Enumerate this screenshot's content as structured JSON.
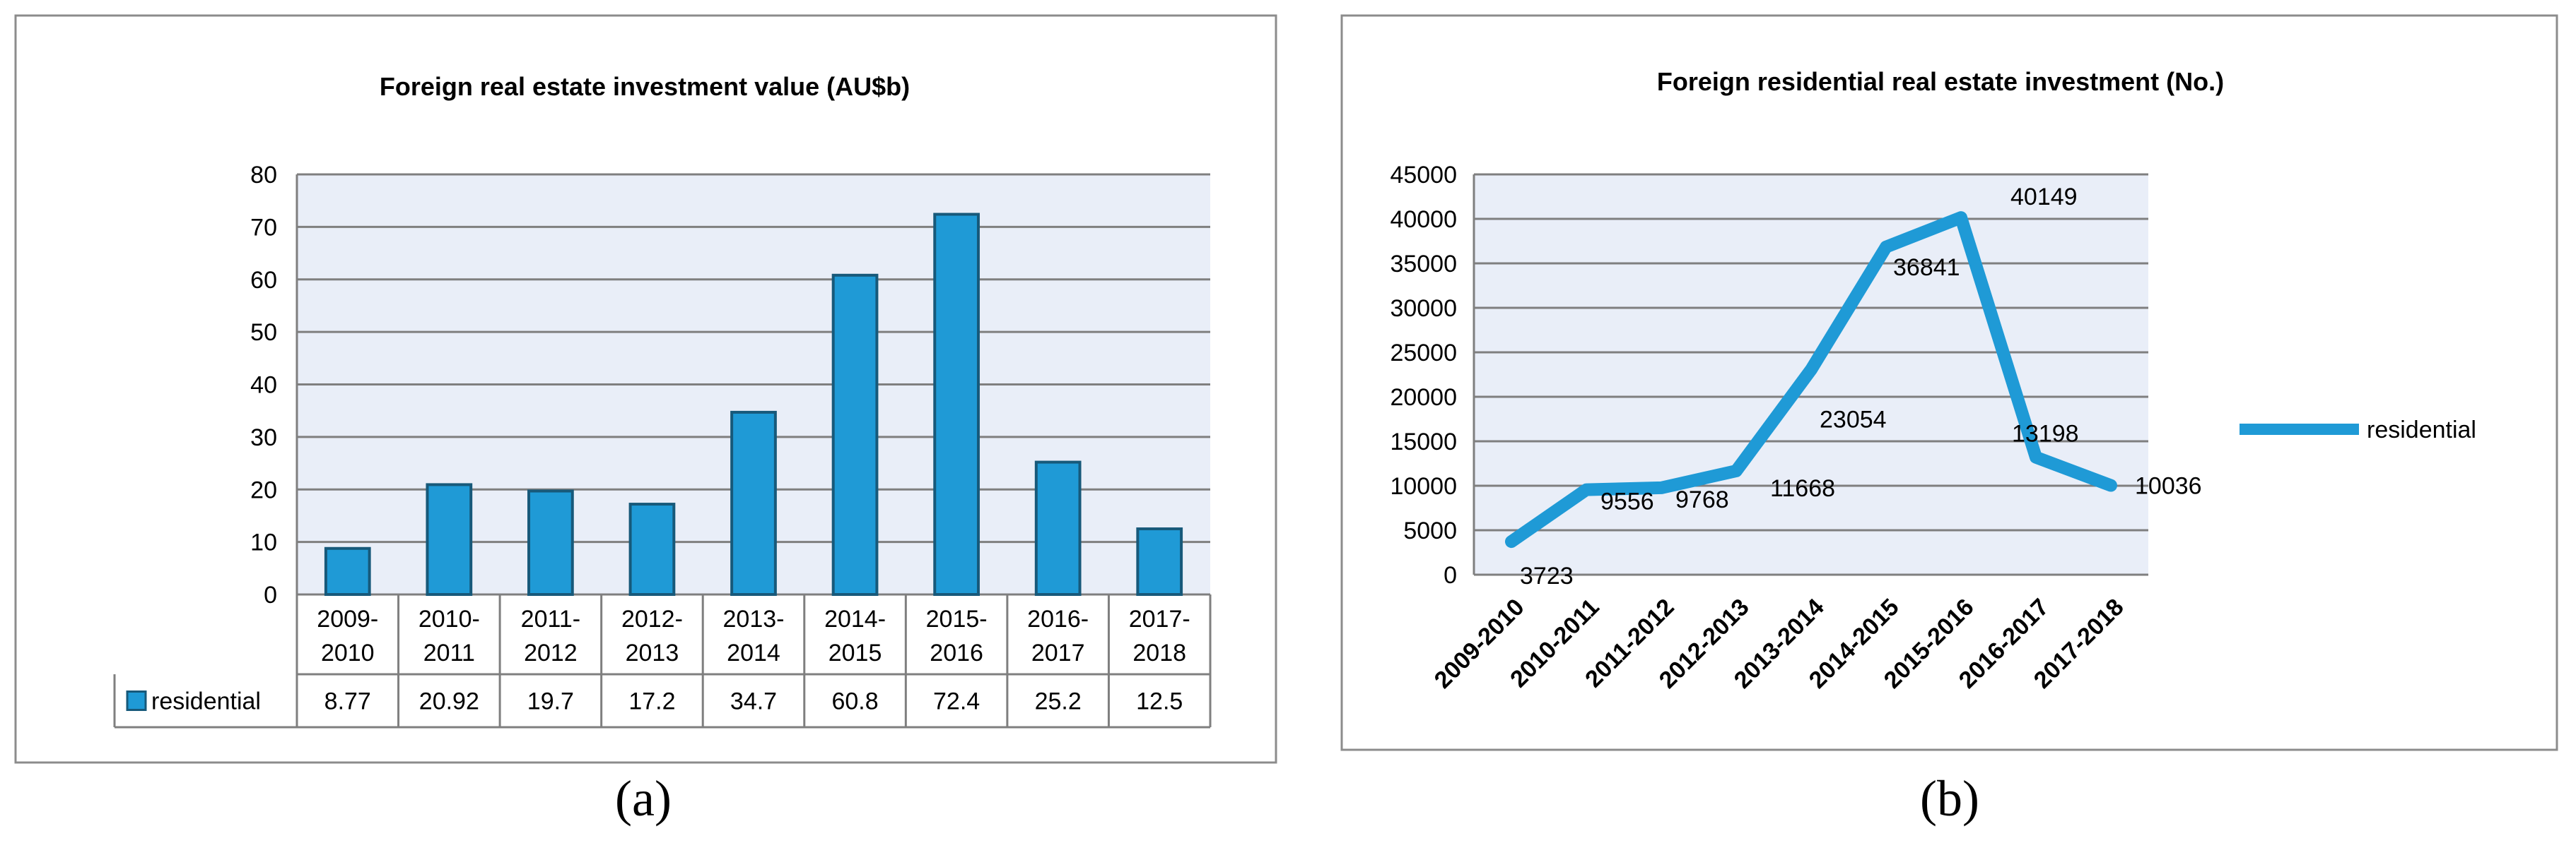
{
  "chart_data": [
    {
      "type": "bar",
      "title": "Foreign real estate investment value (AU$b)",
      "categories": [
        "2009-2010",
        "2010-2011",
        "2011-2012",
        "2012-2013",
        "2013-2014",
        "2014-2015",
        "2015-2016",
        "2016-2017",
        "2017-2018"
      ],
      "category_lines": [
        [
          "2009-",
          "2010"
        ],
        [
          "2010-",
          "2011"
        ],
        [
          "2011-",
          "2012"
        ],
        [
          "2012-",
          "2013"
        ],
        [
          "2013-",
          "2014"
        ],
        [
          "2014-",
          "2015"
        ],
        [
          "2015-",
          "2016"
        ],
        [
          "2016-",
          "2017"
        ],
        [
          "2017-",
          "2018"
        ]
      ],
      "series": [
        {
          "name": "residential",
          "values": [
            8.77,
            20.92,
            19.7,
            17.2,
            34.7,
            60.8,
            72.4,
            25.2,
            12.5
          ],
          "value_labels": [
            "8.77",
            "20.92",
            "19.7",
            "17.2",
            "34.7",
            "60.8",
            "72.4",
            "25.2",
            "12.5"
          ]
        }
      ],
      "ylim": [
        0,
        80
      ],
      "yticks": [
        0,
        10,
        20,
        30,
        40,
        50,
        60,
        70,
        80
      ],
      "grid": true,
      "data_table": true,
      "colors": {
        "bar": "#1f9ad6",
        "bar_edge": "#17597a",
        "plot_bg": "#e9eef8",
        "grid": "#7f7f7f"
      }
    },
    {
      "type": "line",
      "title": "Foreign residential real estate investment (No.)",
      "categories": [
        "2009-2010",
        "2010-2011",
        "2011-2012",
        "2012-2013",
        "2013-2014",
        "2014-2015",
        "2015-2016",
        "2016-2017",
        "2017-2018"
      ],
      "series": [
        {
          "name": "residential",
          "values": [
            3723,
            9556,
            9768,
            11668,
            23054,
            36841,
            40149,
            13198,
            10036
          ],
          "value_labels": [
            "3723",
            "9556",
            "9768",
            "11668",
            "23054",
            "36841",
            "40149",
            "13198",
            "10036"
          ]
        }
      ],
      "ylim": [
        0,
        45000
      ],
      "yticks": [
        0,
        5000,
        10000,
        15000,
        20000,
        25000,
        30000,
        35000,
        40000,
        45000
      ],
      "grid": true,
      "legend": "right",
      "colors": {
        "line": "#1f9ad6",
        "plot_bg": "#e9eef8",
        "grid": "#7f7f7f"
      }
    }
  ],
  "captions": {
    "a": "(a)",
    "b": "(b)"
  }
}
